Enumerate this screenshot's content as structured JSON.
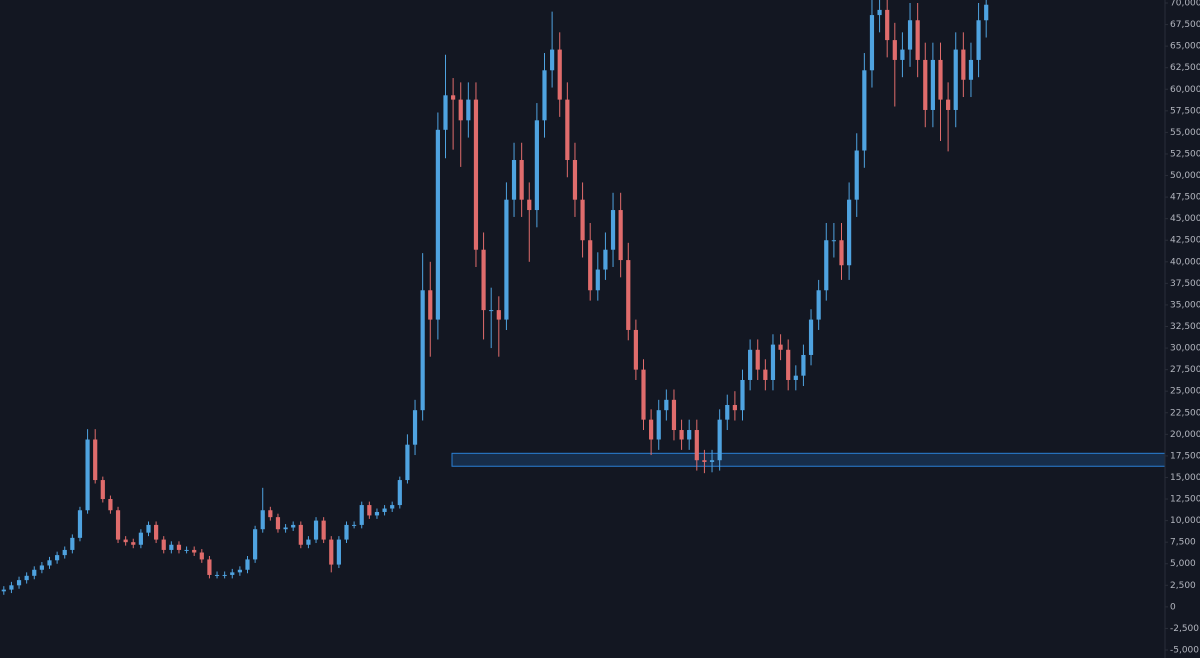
{
  "chart_data": {
    "type": "candlestick",
    "up_color": "#4fa3e0",
    "down_color": "#e06c6c",
    "grid": false,
    "zone": {
      "high": 17800,
      "low": 16300,
      "color": "#2a7fd4"
    },
    "ylim": [
      -5000,
      70000
    ],
    "yticks": [
      {
        "value": -5000,
        "label": "-5,000"
      },
      {
        "value": -2500,
        "label": "-2,500"
      },
      0,
      {
        "value": 2500,
        "label": "2,500"
      },
      {
        "value": 5000,
        "label": "5,000"
      },
      {
        "value": 7500,
        "label": "7,500"
      },
      {
        "value": 10000,
        "label": "10,000"
      },
      {
        "value": 12500,
        "label": "12,500"
      },
      {
        "value": 15000,
        "label": "15,000"
      },
      {
        "value": 17500,
        "label": "17,500"
      },
      {
        "value": 20000,
        "label": "20,000"
      },
      {
        "value": 22500,
        "label": "22,500"
      },
      {
        "value": 25000,
        "label": "25,000"
      },
      {
        "value": 27500,
        "label": "27,500"
      },
      {
        "value": 30000,
        "label": "30,000"
      },
      {
        "value": 32500,
        "label": "32,500"
      },
      {
        "value": 35000,
        "label": "35,000"
      },
      {
        "value": 37500,
        "label": "37,500"
      },
      {
        "value": 40000,
        "label": "40,000"
      },
      {
        "value": 42500,
        "label": "42,500"
      },
      {
        "value": 45000,
        "label": "45,000"
      },
      {
        "value": 47500,
        "label": "47,500"
      },
      {
        "value": 50000,
        "label": "50,000"
      },
      {
        "value": 52500,
        "label": "52,500"
      },
      {
        "value": 55000,
        "label": "55,000"
      },
      {
        "value": 57500,
        "label": "57,500"
      },
      {
        "value": 60000,
        "label": "60,000"
      },
      {
        "value": 62500,
        "label": "62,500"
      },
      {
        "value": 65000,
        "label": "65,000"
      },
      {
        "value": 67500,
        "label": "67,500"
      },
      {
        "value": 70000,
        "label": "70,000"
      }
    ],
    "candles": [
      [
        1800,
        2400,
        1400,
        2000
      ],
      [
        2000,
        2900,
        1600,
        2500
      ],
      [
        2500,
        3500,
        2100,
        3100
      ],
      [
        3100,
        4000,
        2700,
        3600
      ],
      [
        3600,
        4700,
        3200,
        4300
      ],
      [
        4300,
        5200,
        3900,
        4800
      ],
      [
        4800,
        5800,
        4400,
        5400
      ],
      [
        5400,
        6400,
        5000,
        6000
      ],
      [
        6000,
        7000,
        5600,
        6600
      ],
      [
        6600,
        8400,
        6200,
        8000
      ],
      [
        8000,
        11600,
        7600,
        11200
      ],
      [
        11200,
        20600,
        10800,
        19400
      ],
      [
        19400,
        20600,
        14300,
        14700
      ],
      [
        14700,
        15100,
        12100,
        12500
      ],
      [
        12500,
        12900,
        10800,
        11200
      ],
      [
        11200,
        11600,
        7400,
        7800
      ],
      [
        7800,
        8200,
        7100,
        7500
      ],
      [
        7500,
        7900,
        6800,
        7200
      ],
      [
        7200,
        9000,
        6800,
        8600
      ],
      [
        8600,
        9900,
        8200,
        9500
      ],
      [
        9500,
        9900,
        7400,
        7800
      ],
      [
        7800,
        8200,
        6200,
        6600
      ],
      [
        6600,
        7600,
        6200,
        7200
      ],
      [
        7200,
        7600,
        6200,
        6600
      ],
      [
        6600,
        7000,
        6200,
        6600
      ],
      [
        6600,
        7000,
        5900,
        6300
      ],
      [
        6300,
        6700,
        5100,
        5500
      ],
      [
        5500,
        5900,
        3300,
        3700
      ],
      [
        3700,
        4100,
        3300,
        3700
      ],
      [
        3700,
        4100,
        3300,
        3700
      ],
      [
        3700,
        4400,
        3300,
        4000
      ],
      [
        4000,
        4700,
        3600,
        4300
      ],
      [
        4300,
        5900,
        3900,
        5500
      ],
      [
        5500,
        9400,
        5100,
        9000
      ],
      [
        9000,
        13800,
        8600,
        11200
      ],
      [
        11200,
        11600,
        10000,
        10400
      ],
      [
        10400,
        10800,
        8600,
        9000
      ],
      [
        9000,
        9600,
        8600,
        9200
      ],
      [
        9200,
        9900,
        8800,
        9500
      ],
      [
        9500,
        9900,
        6800,
        7200
      ],
      [
        7200,
        8200,
        6800,
        7800
      ],
      [
        7800,
        10400,
        7400,
        10000
      ],
      [
        10000,
        10400,
        7400,
        7800
      ],
      [
        7800,
        8200,
        4000,
        4900
      ],
      [
        4900,
        8200,
        4500,
        7800
      ],
      [
        7800,
        9900,
        7400,
        9500
      ],
      [
        9500,
        9900,
        9100,
        9500
      ],
      [
        9500,
        12200,
        9100,
        11800
      ],
      [
        11800,
        12200,
        10200,
        10600
      ],
      [
        10600,
        11400,
        10200,
        11000
      ],
      [
        11000,
        11800,
        10600,
        11400
      ],
      [
        11400,
        12200,
        11000,
        11800
      ],
      [
        11800,
        15100,
        11400,
        14700
      ],
      [
        14700,
        20000,
        14300,
        18800
      ],
      [
        18800,
        24000,
        17600,
        22800
      ],
      [
        22800,
        41000,
        21600,
        36700
      ],
      [
        36700,
        40000,
        29000,
        33300
      ],
      [
        33300,
        57300,
        31000,
        55300
      ],
      [
        55300,
        64000,
        52000,
        59300
      ],
      [
        59300,
        61300,
        53000,
        58800
      ],
      [
        58800,
        60800,
        51000,
        56400
      ],
      [
        56400,
        60800,
        54400,
        58800
      ],
      [
        58800,
        60800,
        39400,
        41400
      ],
      [
        41400,
        43400,
        31000,
        34400
      ],
      [
        34400,
        37000,
        30000,
        34400
      ],
      [
        34400,
        36000,
        29000,
        33300
      ],
      [
        33300,
        49200,
        32100,
        47200
      ],
      [
        47200,
        53800,
        45200,
        51800
      ],
      [
        51800,
        53800,
        45200,
        47200
      ],
      [
        47200,
        49200,
        40000,
        46000
      ],
      [
        46000,
        58400,
        44000,
        56400
      ],
      [
        56400,
        64200,
        54400,
        62200
      ],
      [
        62200,
        69000,
        60200,
        64600
      ],
      [
        64600,
        66600,
        56800,
        58800
      ],
      [
        58800,
        60800,
        49800,
        51800
      ],
      [
        51800,
        53800,
        45200,
        47200
      ],
      [
        47200,
        49200,
        40500,
        42500
      ],
      [
        42500,
        44500,
        35500,
        36700
      ],
      [
        36700,
        41100,
        35500,
        39100
      ],
      [
        39100,
        43400,
        37900,
        41400
      ],
      [
        41400,
        48000,
        39400,
        46000
      ],
      [
        46000,
        48000,
        38200,
        40200
      ],
      [
        40200,
        42200,
        30900,
        32100
      ],
      [
        32100,
        33300,
        26300,
        27500
      ],
      [
        27500,
        28700,
        20500,
        21700
      ],
      [
        21700,
        22900,
        17600,
        19400
      ],
      [
        19400,
        24000,
        18200,
        22800
      ],
      [
        22800,
        25200,
        21600,
        24000
      ],
      [
        24000,
        25200,
        19300,
        20500
      ],
      [
        20500,
        21700,
        18200,
        19400
      ],
      [
        19400,
        21700,
        18200,
        20500
      ],
      [
        20500,
        21700,
        15800,
        17000
      ],
      [
        17000,
        18200,
        15500,
        16800
      ],
      [
        16800,
        18200,
        15600,
        17000
      ],
      [
        17000,
        22900,
        15800,
        21700
      ],
      [
        21700,
        24600,
        20500,
        23400
      ],
      [
        23400,
        25000,
        21600,
        22800
      ],
      [
        22800,
        27500,
        21600,
        26300
      ],
      [
        26300,
        31000,
        25100,
        29800
      ],
      [
        29800,
        31000,
        26300,
        27500
      ],
      [
        27500,
        28700,
        25100,
        26300
      ],
      [
        26300,
        31600,
        25100,
        30400
      ],
      [
        30400,
        31600,
        28600,
        29800
      ],
      [
        29800,
        31000,
        25100,
        26300
      ],
      [
        26300,
        28000,
        25100,
        26800
      ],
      [
        26800,
        30400,
        25600,
        29200
      ],
      [
        29200,
        34500,
        28000,
        33300
      ],
      [
        33300,
        37900,
        32100,
        36700
      ],
      [
        36700,
        44500,
        35500,
        42500
      ],
      [
        42500,
        44500,
        40500,
        42500
      ],
      [
        42500,
        44500,
        37900,
        39600
      ],
      [
        39600,
        49200,
        37900,
        47200
      ],
      [
        47200,
        54900,
        45200,
        52900
      ],
      [
        52900,
        64200,
        50900,
        62200
      ],
      [
        62200,
        70600,
        60200,
        68600
      ],
      [
        68600,
        71200,
        66600,
        69200
      ],
      [
        69200,
        71200,
        63700,
        65700
      ],
      [
        65700,
        67700,
        58000,
        63400
      ],
      [
        63400,
        66600,
        61400,
        64600
      ],
      [
        64600,
        70000,
        62600,
        68000
      ],
      [
        68000,
        70000,
        61400,
        63400
      ],
      [
        63400,
        65400,
        55600,
        57600
      ],
      [
        57600,
        65400,
        55600,
        63400
      ],
      [
        63400,
        65400,
        54000,
        58800
      ],
      [
        58800,
        60800,
        52800,
        57600
      ],
      [
        57600,
        66600,
        55600,
        64600
      ],
      [
        64600,
        66600,
        59100,
        61100
      ],
      [
        61100,
        65400,
        59100,
        63400
      ],
      [
        63400,
        70000,
        61400,
        68000
      ],
      [
        68000,
        71800,
        66000,
        69800
      ]
    ]
  }
}
